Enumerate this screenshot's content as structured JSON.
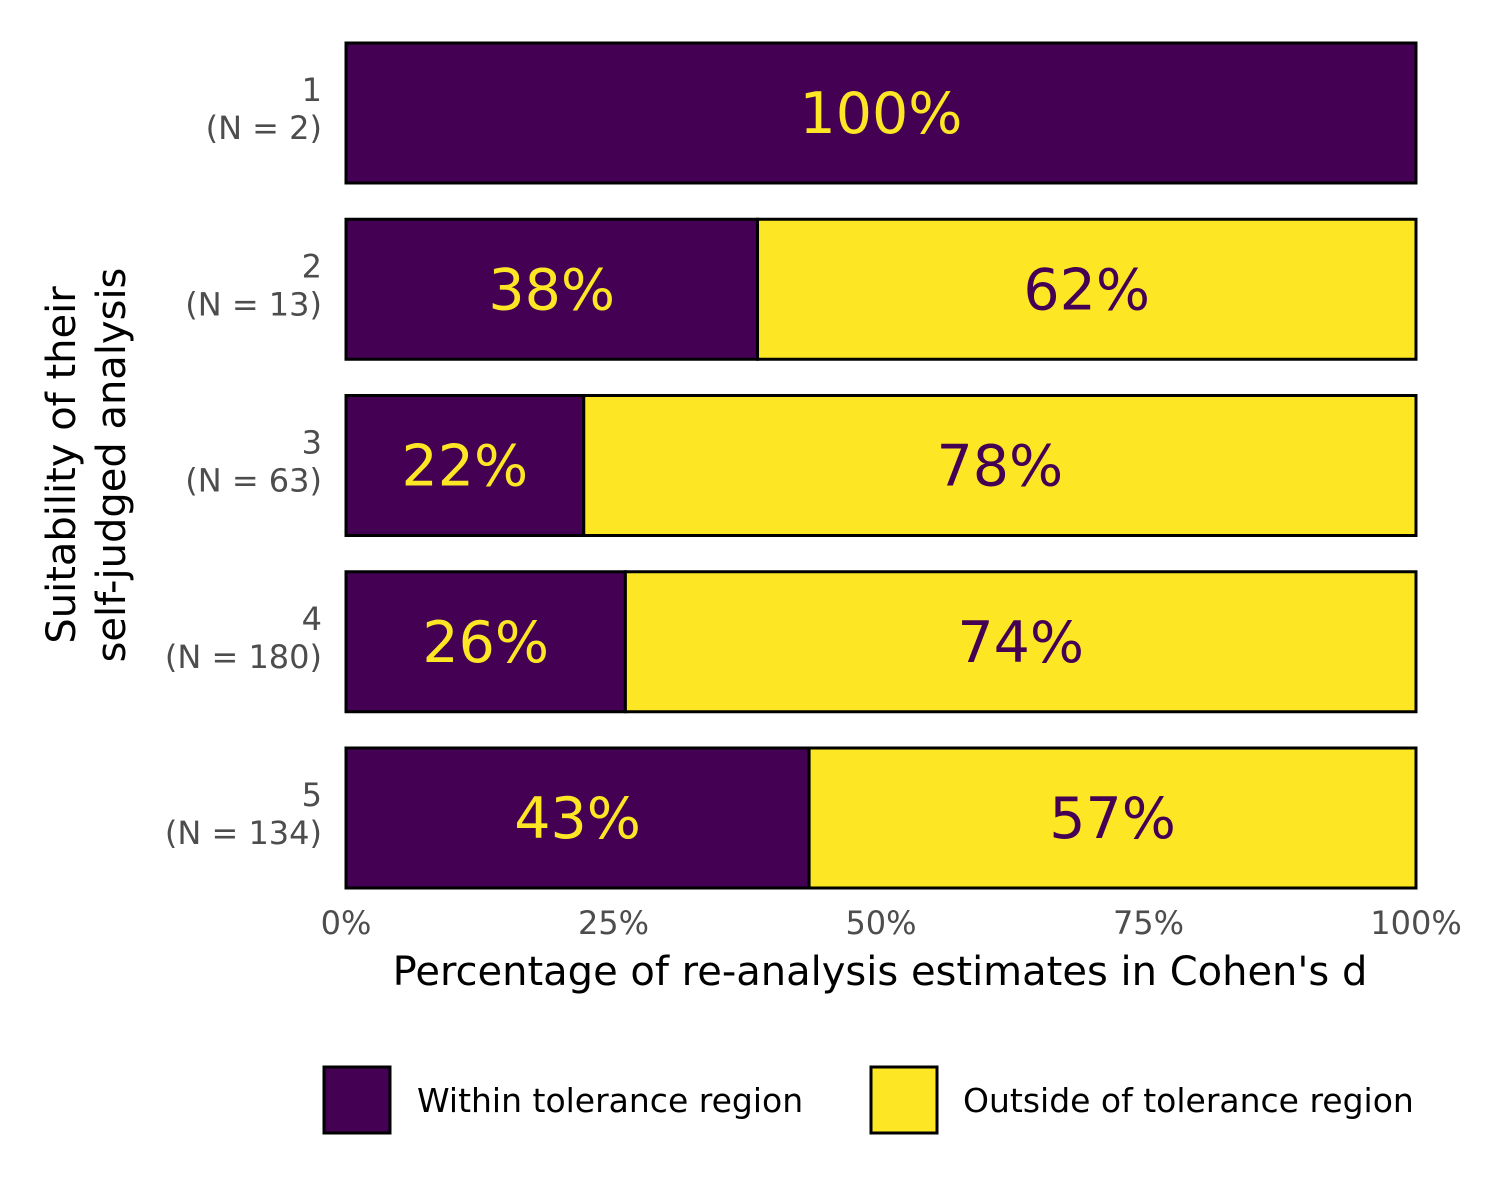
{
  "chart_data": {
    "type": "bar",
    "orientation": "horizontal",
    "stacked": true,
    "categories": [
      {
        "level": "1",
        "n_label": "(N = 2)"
      },
      {
        "level": "2",
        "n_label": "(N = 13)"
      },
      {
        "level": "3",
        "n_label": "(N = 63)"
      },
      {
        "level": "4",
        "n_label": "(N = 180)"
      },
      {
        "level": "5",
        "n_label": "(N = 134)"
      }
    ],
    "series": [
      {
        "name": "Within tolerance region",
        "color": "#440154",
        "label_color": "#FDE725",
        "values": [
          100,
          38.46,
          22.22,
          26.11,
          43.28
        ],
        "labels": [
          "100%",
          "38%",
          "22%",
          "26%",
          "43%"
        ]
      },
      {
        "name": "Outside of tolerance region",
        "color": "#FDE725",
        "label_color": "#440154",
        "values": [
          0,
          61.54,
          77.78,
          73.89,
          56.72
        ],
        "labels": [
          "",
          "62%",
          "78%",
          "74%",
          "57%"
        ]
      }
    ],
    "xlabel": "Percentage of re-analysis estimates in Cohen's d",
    "ylabel_lines": [
      "Suitability of their",
      "self-judged analysis"
    ],
    "xlim": [
      0,
      100
    ],
    "x_ticks": [
      {
        "value": 0,
        "label": "0%"
      },
      {
        "value": 25,
        "label": "25%"
      },
      {
        "value": 50,
        "label": "50%"
      },
      {
        "value": 75,
        "label": "75%"
      },
      {
        "value": 100,
        "label": "100%"
      }
    ],
    "grid": false,
    "legend_position": "bottom"
  }
}
